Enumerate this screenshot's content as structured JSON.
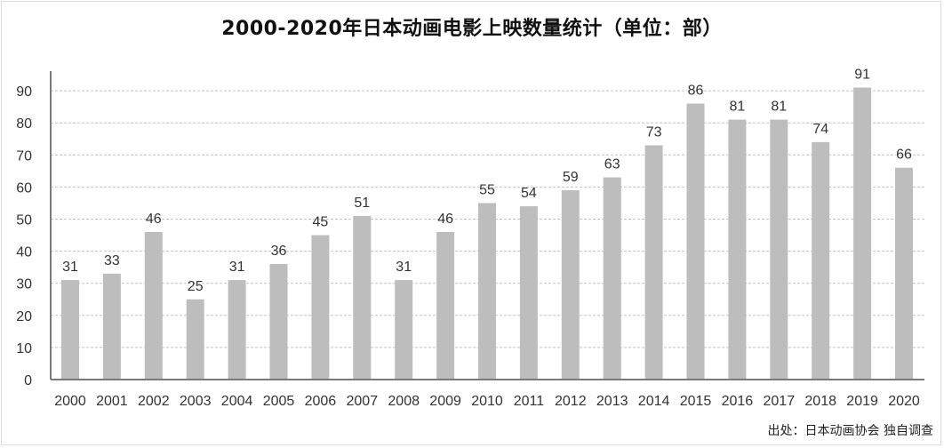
{
  "title": "2000-2020年日本动画电影上映数量统计（单位：部）",
  "source": "出处：日本动画协会 独自调查",
  "colors": {
    "bar": "#bdbdbd",
    "axis": "#7a7a7a",
    "grid": "#c4c4c4",
    "text": "#333333"
  },
  "chart_data": {
    "type": "bar",
    "title": "2000-2020年日本动画电影上映数量统计（单位：部）",
    "xlabel": "",
    "ylabel": "",
    "categories": [
      "2000",
      "2001",
      "2002",
      "2003",
      "2004",
      "2005",
      "2006",
      "2007",
      "2008",
      "2009",
      "2010",
      "2011",
      "2012",
      "2013",
      "2014",
      "2015",
      "2016",
      "2017",
      "2018",
      "2019",
      "2020"
    ],
    "values": [
      31,
      33,
      46,
      25,
      31,
      36,
      45,
      51,
      31,
      46,
      55,
      54,
      59,
      63,
      73,
      86,
      81,
      81,
      74,
      91,
      66
    ],
    "yticks": [
      0,
      10,
      20,
      30,
      40,
      50,
      60,
      70,
      80,
      90
    ],
    "ylim": [
      0,
      95
    ],
    "grid": true,
    "data_labels": true
  }
}
